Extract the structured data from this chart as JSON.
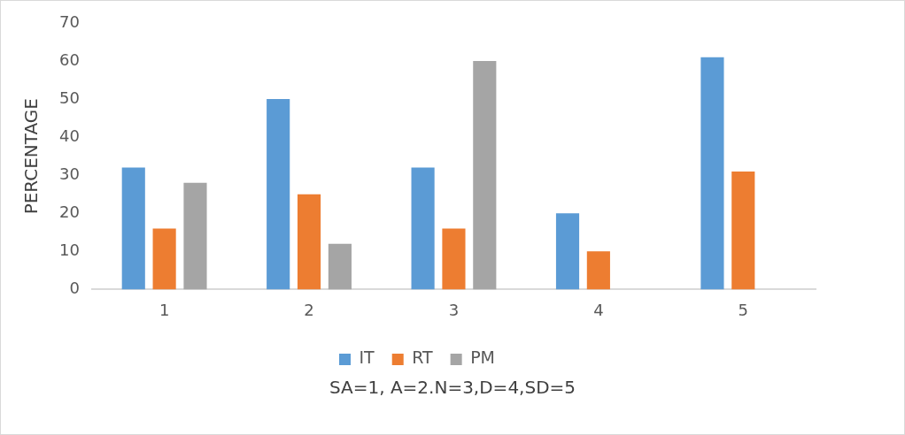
{
  "chart_data": {
    "type": "bar",
    "xlabel": "SA=1, A=2.N=3,D=4,SD=5",
    "ylabel": "PERCENTAGE",
    "categories": [
      "1",
      "2",
      "3",
      "4",
      "5"
    ],
    "series": [
      {
        "name": "IT",
        "color": "#5b9bd5",
        "values": [
          32,
          50,
          32,
          20,
          61
        ]
      },
      {
        "name": "RT",
        "color": "#ed7d31",
        "values": [
          16,
          25,
          16,
          10,
          31
        ]
      },
      {
        "name": "PM",
        "color": "#a5a5a5",
        "values": [
          28,
          12,
          60,
          null,
          null
        ]
      }
    ],
    "ylim": [
      0,
      70
    ],
    "yticks": [
      0,
      10,
      20,
      30,
      40,
      50,
      60,
      70
    ],
    "grid": false,
    "legend": "bottom"
  }
}
